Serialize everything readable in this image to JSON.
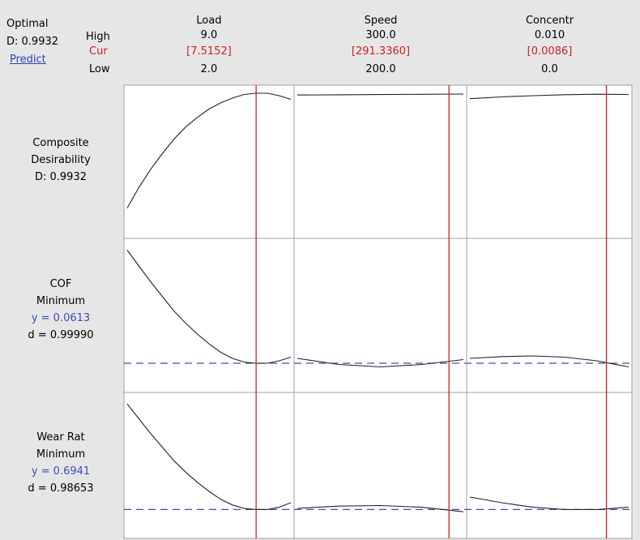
{
  "header": {
    "optimal_label": "Optimal",
    "d_label": "D: 0.9932",
    "predict_label": "Predict",
    "high_label": "High",
    "cur_label": "Cur",
    "low_label": "Low"
  },
  "factors": [
    {
      "name": "Load",
      "high": "9.0",
      "cur": "[7.5152]",
      "low": "2.0"
    },
    {
      "name": "Speed",
      "high": "300.0",
      "cur": "[291.3360]",
      "low": "200.0"
    },
    {
      "name": "Concentr",
      "high": "0.010",
      "cur": "[0.0086]",
      "low": "0.0"
    }
  ],
  "responses": [
    {
      "line1": "Composite",
      "line2": "Desirability",
      "line3": "D: 0.9932",
      "line4": ""
    },
    {
      "line1": "COF",
      "line2": "Minimum",
      "line3": "y = 0.0613",
      "line4": "d = 0.99990"
    },
    {
      "line1": "Wear Rat",
      "line2": "Minimum",
      "line3": "y = 0.6941",
      "line4": "d = 0.98653"
    }
  ],
  "colors": {
    "current_line": "#cc2222",
    "optimum_dashed": "#3a4fb8",
    "curve": "#222222",
    "grid_border": "#a0a0a0"
  },
  "chart_data": {
    "type": "line",
    "description_type": "optimization_plot",
    "x_ranges": [
      [
        2.0,
        9.0
      ],
      [
        200.0,
        300.0
      ],
      [
        0.0,
        0.01
      ]
    ],
    "current_x": [
      7.5152,
      291.336,
      0.0086
    ],
    "panels": [
      {
        "row": 0,
        "col": 0,
        "x": [
          2.0,
          2.5,
          3.0,
          3.5,
          4.0,
          4.5,
          5.0,
          5.5,
          6.0,
          6.5,
          7.0,
          7.5,
          8.0,
          8.5,
          9.0
        ],
        "y": [
          0.05,
          0.22,
          0.37,
          0.5,
          0.62,
          0.72,
          0.8,
          0.87,
          0.92,
          0.96,
          0.99,
          1.0,
          1.0,
          0.98,
          0.95
        ]
      },
      {
        "row": 0,
        "col": 1,
        "x": [
          200,
          225,
          250,
          275,
          300
        ],
        "y": [
          0.985,
          0.987,
          0.989,
          0.991,
          0.993
        ]
      },
      {
        "row": 0,
        "col": 2,
        "x": [
          0.0,
          0.002,
          0.004,
          0.006,
          0.008,
          0.01
        ],
        "y": [
          0.955,
          0.97,
          0.98,
          0.988,
          0.992,
          0.99
        ]
      },
      {
        "row": 1,
        "col": 0,
        "x": [
          2.0,
          2.5,
          3.0,
          3.5,
          4.0,
          4.5,
          5.0,
          5.5,
          6.0,
          6.5,
          7.0,
          7.5,
          8.0,
          8.5,
          9.0
        ],
        "y": [
          0.97,
          0.84,
          0.71,
          0.59,
          0.47,
          0.37,
          0.28,
          0.2,
          0.13,
          0.08,
          0.05,
          0.04,
          0.04,
          0.06,
          0.09
        ]
      },
      {
        "row": 1,
        "col": 1,
        "x": [
          200,
          225,
          250,
          275,
          300
        ],
        "y": [
          0.08,
          0.03,
          0.01,
          0.03,
          0.07
        ]
      },
      {
        "row": 1,
        "col": 2,
        "x": [
          0.0,
          0.002,
          0.004,
          0.006,
          0.008,
          0.01
        ],
        "y": [
          0.08,
          0.095,
          0.1,
          0.09,
          0.06,
          0.01
        ]
      },
      {
        "row": 2,
        "col": 0,
        "x": [
          2.0,
          2.5,
          3.0,
          3.5,
          4.0,
          4.5,
          5.0,
          5.5,
          6.0,
          6.5,
          7.0,
          7.5,
          8.0,
          8.5,
          9.0
        ],
        "y": [
          0.97,
          0.84,
          0.71,
          0.59,
          0.47,
          0.37,
          0.28,
          0.2,
          0.13,
          0.08,
          0.05,
          0.04,
          0.04,
          0.06,
          0.1
        ]
      },
      {
        "row": 2,
        "col": 1,
        "x": [
          200,
          225,
          250,
          275,
          300
        ],
        "y": [
          0.05,
          0.07,
          0.075,
          0.06,
          0.02
        ]
      },
      {
        "row": 2,
        "col": 2,
        "x": [
          0.0,
          0.002,
          0.004,
          0.006,
          0.008,
          0.01
        ],
        "y": [
          0.15,
          0.1,
          0.06,
          0.04,
          0.04,
          0.06
        ]
      }
    ],
    "optimum_levels": [
      null,
      0.04,
      0.04
    ]
  }
}
